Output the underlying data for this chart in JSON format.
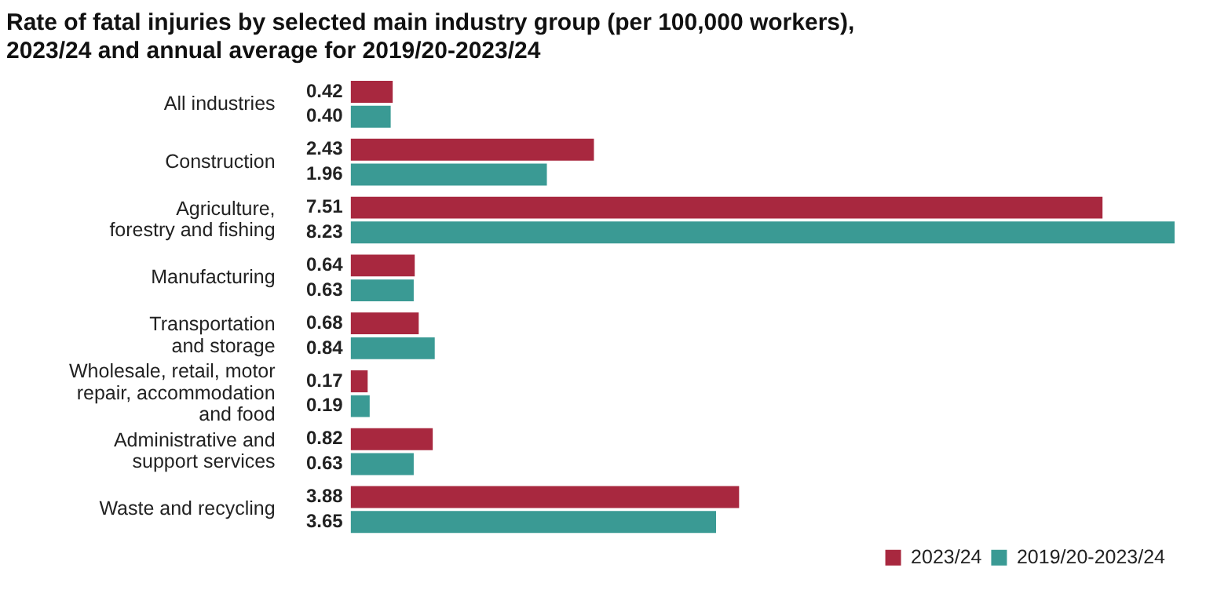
{
  "chart_data": {
    "type": "bar",
    "orientation": "horizontal",
    "title": "Rate of fatal injuries by selected main industry group (per 100,000 workers), 2023/24 and annual average for 2019/20-2023/24",
    "categories": [
      "All industries",
      "Construction",
      "Agriculture,\nforestry and fishing",
      "Manufacturing",
      "Transportation\nand storage",
      "Wholesale, retail, motor\nrepair, accommodation\nand food",
      "Administrative and\nsupport services",
      "Waste and recycling"
    ],
    "series": [
      {
        "name": "2023/24",
        "color": "#a8283f",
        "values": [
          0.42,
          2.43,
          7.51,
          0.64,
          0.68,
          0.17,
          0.82,
          3.88
        ],
        "value_labels": [
          "0.42",
          "2.43",
          "7.51",
          "0.64",
          "0.68",
          "0.17",
          "0.82",
          "3.88"
        ]
      },
      {
        "name": "2019/20-2023/24",
        "color": "#3a9a94",
        "values": [
          0.4,
          1.96,
          8.23,
          0.63,
          0.84,
          0.19,
          0.63,
          3.65
        ],
        "value_labels": [
          "0.40",
          "1.96",
          "8.23",
          "0.63",
          "0.84",
          "0.19",
          "0.63",
          "3.65"
        ]
      }
    ],
    "legend": "bottom right",
    "tick_labels": "y"
  }
}
